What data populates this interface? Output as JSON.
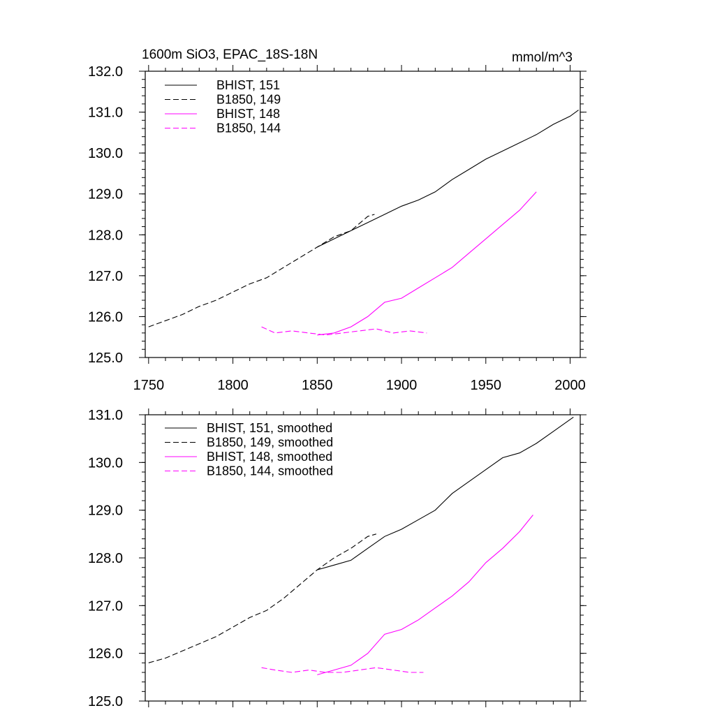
{
  "figure": {
    "title_left": "1600m SiO3, EPAC_18S-18N",
    "title_right": "mmol/m^3"
  },
  "colors": {
    "black": "#000000",
    "magenta": "#ff00ff"
  },
  "chart_data": [
    {
      "type": "line",
      "panel": "top",
      "xlim": [
        1748,
        2006
      ],
      "ylim": [
        125.0,
        132.0
      ],
      "x_ticks": [
        1750,
        1800,
        1850,
        1900,
        1950,
        2000
      ],
      "x_tick_labels": [
        "1750",
        "1800",
        "1850",
        "1900",
        "1950",
        "2000"
      ],
      "y_ticks": [
        125.0,
        126.0,
        127.0,
        128.0,
        129.0,
        130.0,
        131.0,
        132.0
      ],
      "y_tick_labels": [
        "125.0",
        "126.0",
        "127.0",
        "128.0",
        "129.0",
        "130.0",
        "131.0",
        "132.0"
      ],
      "legend_position": "top-left",
      "grid": false,
      "series": [
        {
          "name": "BHIST, 151",
          "color": "#000000",
          "dash": "solid",
          "x": [
            1850,
            1860,
            1870,
            1880,
            1890,
            1900,
            1910,
            1920,
            1930,
            1940,
            1950,
            1960,
            1970,
            1980,
            1990,
            2000,
            2005
          ],
          "y": [
            127.7,
            127.9,
            128.1,
            128.3,
            128.5,
            128.7,
            128.85,
            129.05,
            129.35,
            129.6,
            129.85,
            130.05,
            130.25,
            130.45,
            130.7,
            130.9,
            131.05
          ]
        },
        {
          "name": "B1850, 149",
          "color": "#000000",
          "dash": "dashed",
          "x": [
            1750,
            1760,
            1770,
            1780,
            1790,
            1800,
            1810,
            1820,
            1830,
            1840,
            1850,
            1860,
            1870,
            1880,
            1884
          ],
          "y": [
            125.75,
            125.9,
            126.05,
            126.25,
            126.4,
            126.6,
            126.8,
            126.95,
            127.2,
            127.45,
            127.7,
            127.95,
            128.1,
            128.45,
            128.5
          ]
        },
        {
          "name": "BHIST, 148",
          "color": "#ff00ff",
          "dash": "solid",
          "x": [
            1850,
            1860,
            1870,
            1880,
            1890,
            1900,
            1910,
            1920,
            1930,
            1940,
            1950,
            1960,
            1970,
            1980
          ],
          "y": [
            125.55,
            125.6,
            125.75,
            126.0,
            126.35,
            126.45,
            126.7,
            126.95,
            127.2,
            127.55,
            127.9,
            128.25,
            128.6,
            129.05
          ]
        },
        {
          "name": "B1850, 144",
          "color": "#ff00ff",
          "dash": "dashed",
          "x": [
            1817,
            1825,
            1835,
            1845,
            1855,
            1865,
            1875,
            1885,
            1895,
            1905,
            1915
          ],
          "y": [
            125.75,
            125.6,
            125.65,
            125.6,
            125.55,
            125.6,
            125.65,
            125.7,
            125.6,
            125.65,
            125.6
          ]
        }
      ]
    },
    {
      "type": "line",
      "panel": "bottom",
      "xlim": [
        1748,
        2006
      ],
      "ylim": [
        125.0,
        131.0
      ],
      "x_ticks": [
        1750,
        1800,
        1850,
        1900,
        1950,
        2000
      ],
      "y_ticks": [
        125.0,
        126.0,
        127.0,
        128.0,
        129.0,
        130.0,
        131.0
      ],
      "y_tick_labels": [
        "125.0",
        "126.0",
        "127.0",
        "128.0",
        "129.0",
        "130.0",
        "131.0"
      ],
      "legend_position": "top-left",
      "grid": false,
      "series": [
        {
          "name": "BHIST, 151, smoothed",
          "color": "#000000",
          "dash": "solid",
          "x": [
            1850,
            1860,
            1870,
            1880,
            1890,
            1900,
            1910,
            1920,
            1930,
            1940,
            1950,
            1960,
            1970,
            1980,
            1990,
            2000,
            2002
          ],
          "y": [
            127.75,
            127.85,
            127.95,
            128.2,
            128.45,
            128.6,
            128.8,
            129.0,
            129.35,
            129.6,
            129.85,
            130.1,
            130.2,
            130.4,
            130.65,
            130.9,
            130.95
          ]
        },
        {
          "name": "B1850, 149, smoothed",
          "color": "#000000",
          "dash": "dashed",
          "x": [
            1750,
            1760,
            1770,
            1780,
            1790,
            1800,
            1810,
            1820,
            1830,
            1840,
            1850,
            1860,
            1870,
            1880,
            1885
          ],
          "y": [
            125.8,
            125.9,
            126.05,
            126.2,
            126.35,
            126.55,
            126.75,
            126.9,
            127.15,
            127.45,
            127.75,
            128.0,
            128.2,
            128.45,
            128.5
          ]
        },
        {
          "name": "BHIST, 148, smoothed",
          "color": "#ff00ff",
          "dash": "solid",
          "x": [
            1850,
            1860,
            1870,
            1880,
            1890,
            1900,
            1910,
            1920,
            1930,
            1940,
            1950,
            1960,
            1970,
            1978
          ],
          "y": [
            125.55,
            125.65,
            125.75,
            126.0,
            126.4,
            126.5,
            126.7,
            126.95,
            127.2,
            127.5,
            127.9,
            128.2,
            128.55,
            128.9
          ]
        },
        {
          "name": "B1850, 144, smoothed",
          "color": "#ff00ff",
          "dash": "dashed",
          "x": [
            1817,
            1825,
            1835,
            1845,
            1855,
            1865,
            1875,
            1885,
            1895,
            1905,
            1913
          ],
          "y": [
            125.7,
            125.65,
            125.6,
            125.65,
            125.6,
            125.6,
            125.65,
            125.7,
            125.65,
            125.6,
            125.6
          ]
        }
      ]
    }
  ]
}
